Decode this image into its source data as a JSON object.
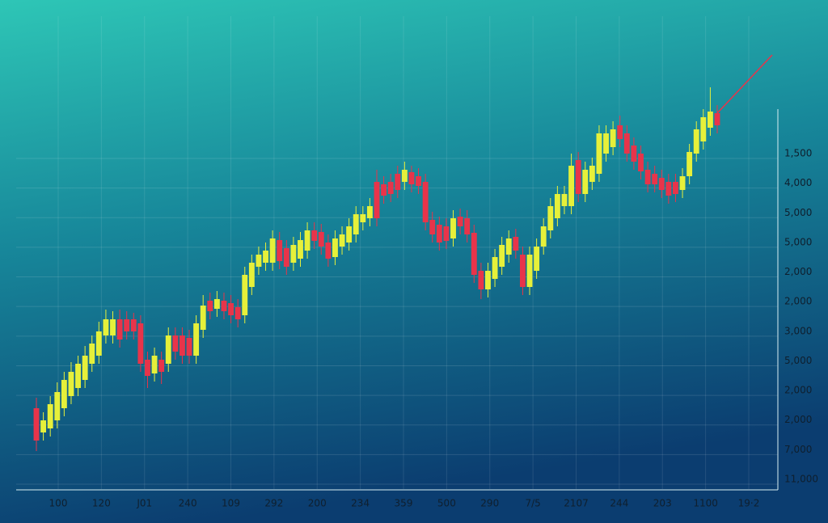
{
  "chart_data": {
    "type": "candlestick",
    "up_color": "#e6f03a",
    "down_color": "#e8344a",
    "ylim": [
      0,
      565
    ],
    "grid": true,
    "x_labels": [
      "100",
      "120",
      "J01",
      "240",
      "109",
      "292",
      "200",
      "234",
      "359",
      "500",
      "290",
      "7/5",
      "2107",
      "244",
      "203",
      "1100",
      "19·2"
    ],
    "y_axis_labels": [
      "1,500",
      "4,000",
      "5,000",
      "5,000",
      "2,000",
      "2,000",
      "3,000",
      "5,000",
      "2,000",
      "2,000",
      "7,000",
      "11,000"
    ],
    "open": [
      100,
      70,
      75,
      85,
      100,
      115,
      125,
      135,
      155,
      165,
      190,
      190,
      210,
      210,
      210,
      205,
      160,
      143,
      160,
      155,
      190,
      190,
      187,
      165,
      197,
      233,
      223,
      233,
      230,
      225,
      215,
      250,
      275,
      280,
      280,
      308,
      298,
      280,
      285,
      295,
      320,
      318,
      305,
      287,
      300,
      305,
      315,
      330,
      335,
      380,
      377,
      380,
      390,
      380,
      392,
      387,
      380,
      333,
      327,
      325,
      310,
      337,
      335,
      317,
      270,
      247,
      260,
      275,
      290,
      312,
      290,
      250,
      270,
      300,
      320,
      335,
      350,
      350,
      407,
      365,
      380,
      390,
      415,
      423,
      450,
      440,
      425,
      415,
      395,
      390,
      385,
      380,
      380,
      370,
      387,
      415,
      430,
      447,
      465
    ],
    "close": [
      60,
      85,
      105,
      120,
      135,
      145,
      155,
      165,
      180,
      195,
      210,
      210,
      185,
      195,
      195,
      155,
      140,
      165,
      145,
      190,
      170,
      165,
      165,
      205,
      227,
      220,
      235,
      220,
      215,
      210,
      265,
      280,
      290,
      295,
      310,
      282,
      275,
      302,
      308,
      320,
      307,
      300,
      285,
      310,
      315,
      325,
      340,
      340,
      350,
      335,
      363,
      365,
      370,
      395,
      377,
      375,
      330,
      315,
      305,
      307,
      335,
      325,
      315,
      265,
      247,
      270,
      287,
      302,
      310,
      295,
      250,
      290,
      300,
      325,
      350,
      365,
      365,
      400,
      365,
      395,
      400,
      440,
      440,
      445,
      433,
      415,
      405,
      393,
      377,
      377,
      370,
      363,
      365,
      387,
      417,
      445,
      460,
      467,
      450
    ],
    "high": [
      113,
      95,
      115,
      132,
      145,
      157,
      165,
      177,
      190,
      207,
      222,
      220,
      222,
      220,
      218,
      215,
      170,
      175,
      170,
      200,
      200,
      200,
      197,
      215,
      240,
      243,
      245,
      243,
      240,
      235,
      275,
      290,
      300,
      305,
      320,
      318,
      308,
      312,
      318,
      330,
      330,
      328,
      315,
      320,
      325,
      335,
      350,
      350,
      360,
      395,
      387,
      390,
      400,
      405,
      400,
      397,
      390,
      343,
      337,
      335,
      345,
      347,
      345,
      327,
      280,
      280,
      297,
      312,
      320,
      322,
      300,
      300,
      310,
      335,
      360,
      375,
      375,
      415,
      417,
      405,
      410,
      450,
      450,
      455,
      462,
      450,
      435,
      425,
      405,
      400,
      395,
      390,
      390,
      397,
      427,
      455,
      470,
      497,
      475
    ],
    "low": [
      47,
      60,
      65,
      75,
      90,
      105,
      115,
      125,
      145,
      155,
      180,
      180,
      175,
      185,
      185,
      145,
      125,
      133,
      130,
      145,
      160,
      155,
      155,
      155,
      187,
      210,
      213,
      210,
      205,
      200,
      205,
      240,
      265,
      270,
      270,
      272,
      265,
      270,
      275,
      285,
      297,
      290,
      275,
      277,
      290,
      295,
      305,
      320,
      325,
      325,
      353,
      355,
      360,
      370,
      367,
      365,
      320,
      305,
      295,
      297,
      300,
      315,
      305,
      255,
      235,
      237,
      250,
      265,
      280,
      285,
      240,
      240,
      260,
      290,
      310,
      325,
      340,
      340,
      355,
      355,
      370,
      380,
      405,
      413,
      423,
      405,
      395,
      383,
      367,
      367,
      360,
      353,
      355,
      360,
      377,
      405,
      420,
      437,
      440
    ]
  }
}
